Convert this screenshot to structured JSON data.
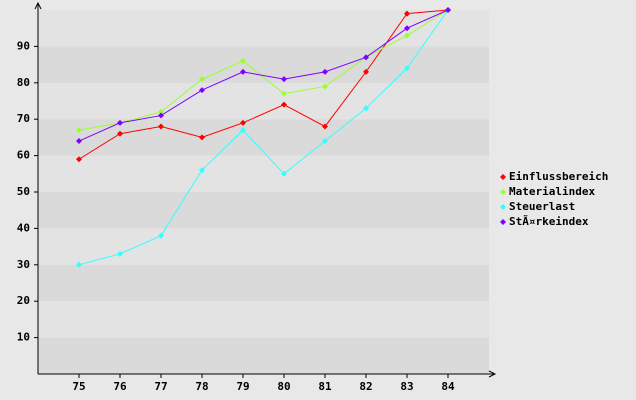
{
  "chart_data": {
    "type": "line",
    "categories": [
      "75",
      "76",
      "77",
      "78",
      "79",
      "80",
      "81",
      "82",
      "83",
      "84"
    ],
    "series": [
      {
        "name": "Einflussbereich",
        "color": "#ff0000",
        "values": [
          59,
          66,
          68,
          65,
          69,
          74,
          68,
          83,
          99,
          100
        ]
      },
      {
        "name": "Materialindex",
        "color": "#99ff33",
        "values": [
          67,
          69,
          72,
          81,
          86,
          77,
          79,
          87,
          93,
          100
        ]
      },
      {
        "name": "Steuerlast",
        "color": "#33ffff",
        "values": [
          30,
          33,
          38,
          56,
          67,
          55,
          64,
          73,
          84,
          100
        ]
      },
      {
        "name": "StÃ¤rkeindex",
        "color": "#8000ff",
        "values": [
          64,
          69,
          71,
          78,
          83,
          81,
          83,
          87,
          95,
          100
        ]
      }
    ],
    "ylim": [
      0,
      100
    ],
    "yticks": [
      10,
      20,
      30,
      40,
      50,
      60,
      70,
      80,
      90
    ],
    "grid": true,
    "legend": "right"
  }
}
